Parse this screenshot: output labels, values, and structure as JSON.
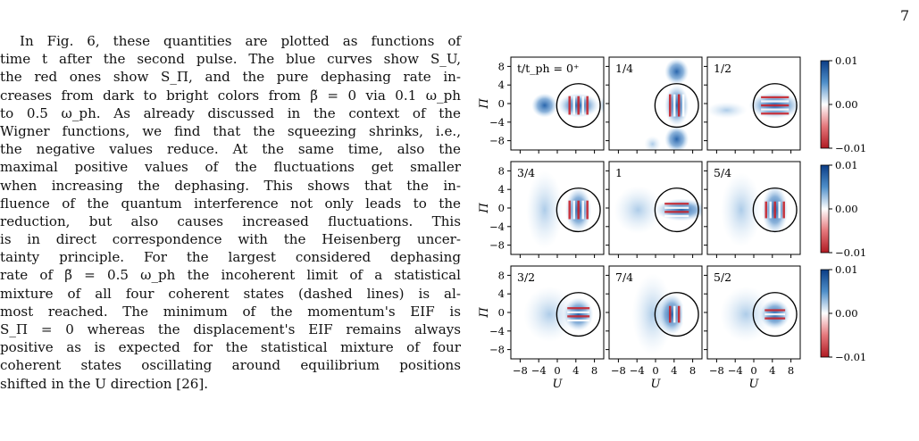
{
  "page": {
    "number": "7"
  },
  "paragraph_lines": [
    "In Fig. 6, these quantities are plotted as functions of",
    "time t after the second pulse. The blue curves show S_U,",
    "the red ones show S_Π, and the pure dephasing rate in-",
    "creases from dark to bright colors from β̃ = 0 via 0.1 ω_ph",
    "to 0.5 ω_ph.  As already discussed in the context of the",
    "Wigner functions, we find that the squeezing shrinks, i.e.,",
    "the negative values reduce.  At the same time, also the",
    "maximal positive values of the fluctuations get smaller",
    "when increasing the dephasing. This shows that the in-",
    "fluence of the quantum interference not only leads to the",
    "reduction, but also causes increased fluctuations.  This",
    "is in direct correspondence with the Heisenberg uncer-",
    "tainty principle.  For the largest considered dephasing",
    "rate of β̃ = 0.5 ω_ph the incoherent limit of a statistical",
    "mixture of all four coherent states (dashed lines) is al-",
    "most reached. The minimum of the momentum's EIF is",
    "S_Π = 0 whereas the displacement's EIF remains always",
    "positive as is expected for the statistical mixture of four",
    "coherent states oscillating around equilibrium positions",
    "shifted in the U direction [26]."
  ],
  "chart_data": {
    "type": "heatmap",
    "xlabel": "U",
    "ylabel": "Π",
    "x_ticks": [
      "−8",
      "−4",
      "0",
      "4",
      "8"
    ],
    "y_ticks": [
      "8",
      "4",
      "0",
      "−4",
      "−8"
    ],
    "xlim": [
      -10,
      10
    ],
    "ylim": [
      -10,
      10
    ],
    "panels": [
      {
        "label": "t/t_ph = 0⁺",
        "row": 0,
        "col": 0
      },
      {
        "label": "1/4",
        "row": 0,
        "col": 1
      },
      {
        "label": "1/2",
        "row": 0,
        "col": 2
      },
      {
        "label": "3/4",
        "row": 1,
        "col": 0
      },
      {
        "label": "1",
        "row": 1,
        "col": 1
      },
      {
        "label": "5/4",
        "row": 1,
        "col": 2
      },
      {
        "label": "3/2",
        "row": 2,
        "col": 0
      },
      {
        "label": "7/4",
        "row": 2,
        "col": 1
      },
      {
        "label": "5/2",
        "row": 2,
        "col": 2
      }
    ],
    "colorbar": {
      "ticks": [
        "0.01",
        "0.00",
        "−0.01"
      ],
      "range": [
        -0.01,
        0.01
      ]
    },
    "colors": {
      "positive": "#1f5ea8",
      "negative": "#c8242c",
      "zero": "#ffffff"
    },
    "circle": {
      "center_U": 4,
      "center_Pi": 0,
      "radius": 4.5
    }
  }
}
